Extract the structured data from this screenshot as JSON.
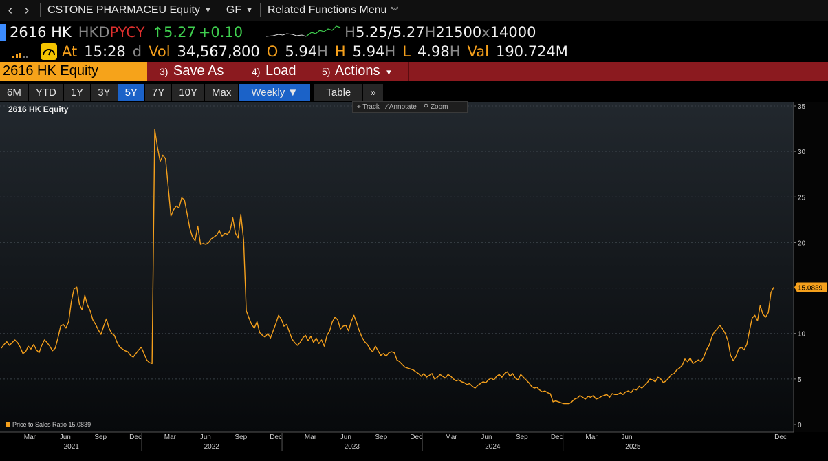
{
  "nav": {
    "security": "CSTONE PHARMACEU Equity",
    "function": "GF",
    "related": "Related Functions Menu"
  },
  "quote": {
    "ticker": "2616 HK",
    "currency": "HKD",
    "pricing": "PYCY",
    "arrow": "↑",
    "last": "5.27",
    "change": "+0.10",
    "bid_prefix": "H",
    "bid": "5.25",
    "ask": "/5.27",
    "size_prefix": "H",
    "bid_size": "21500",
    "x": "x",
    "ask_size": "14000",
    "at_label": "At",
    "time": "15:28",
    "d": "d",
    "vol_label": "Vol",
    "volume": "34,567,800",
    "open_label": "O",
    "open": "5.94",
    "h1": "H",
    "high_label": "H",
    "high": "5.94",
    "h2": "H",
    "low_label": "L",
    "low": "4.98",
    "h3": "H",
    "val_label": "Val",
    "value": "190.724M"
  },
  "command": {
    "main": "2616 HK Equity",
    "buttons": [
      {
        "num": "3)",
        "label": "Save As"
      },
      {
        "num": "4)",
        "label": "Load"
      },
      {
        "num": "5)",
        "label": "Actions",
        "caret": "▾"
      }
    ]
  },
  "tabs": [
    "6M",
    "YTD",
    "1Y",
    "3Y",
    "5Y",
    "7Y",
    "10Y",
    "Max"
  ],
  "active_tab": "5Y",
  "weekly": "Weekly ▼",
  "table": "Table",
  "more": "»",
  "toolbox": {
    "track": "Track",
    "annotate": "Annotate",
    "zoom": "Zoom"
  },
  "colors": {
    "line": "#f5a01c",
    "accent": "#1b62c8",
    "command_bar": "#8b1a1f"
  },
  "chart_data": {
    "type": "line",
    "title": "2616 HK Equity",
    "series": [
      {
        "name": "Price to Sales Ratio 15.0839",
        "x_start": "2020-12-31",
        "interval_days": 7,
        "values": [
          8.4,
          8.8,
          9.1,
          8.7,
          9.0,
          9.3,
          9.0,
          8.5,
          7.8,
          8.0,
          8.6,
          8.3,
          8.8,
          8.2,
          7.9,
          8.7,
          9.3,
          9.0,
          8.6,
          8.1,
          8.4,
          9.5,
          10.8,
          11.0,
          10.6,
          11.3,
          13.5,
          14.9,
          15.1,
          13.2,
          12.6,
          14.2,
          13.1,
          12.5,
          11.5,
          11.0,
          10.4,
          9.9,
          10.8,
          11.6,
          10.6,
          10.0,
          9.8,
          9.0,
          8.5,
          8.3,
          8.1,
          8.0,
          7.6,
          7.4,
          7.8,
          8.2,
          8.5,
          7.8,
          7.1,
          6.8,
          6.7,
          32.4,
          30.5,
          28.9,
          29.6,
          29.2,
          26.1,
          22.9,
          23.6,
          24.0,
          23.8,
          24.9,
          24.7,
          23.2,
          21.6,
          20.6,
          20.2,
          21.8,
          19.8,
          19.9,
          19.8,
          20.0,
          20.4,
          20.6,
          20.8,
          21.3,
          20.7,
          21.0,
          20.9,
          21.3,
          22.7,
          21.0,
          20.5,
          23.1,
          20.3,
          12.5,
          11.7,
          11.0,
          10.6,
          11.3,
          10.1,
          9.8,
          9.6,
          10.0,
          9.5,
          10.3,
          11.1,
          12.0,
          11.6,
          10.8,
          11.0,
          10.2,
          9.4,
          9.0,
          8.7,
          9.0,
          9.5,
          9.8,
          9.2,
          9.7,
          9.0,
          9.5,
          8.9,
          9.3,
          8.6,
          9.8,
          10.3,
          11.3,
          11.8,
          11.5,
          10.5,
          10.8,
          10.9,
          10.3,
          11.3,
          12.0,
          11.2,
          10.3,
          9.6,
          9.1,
          8.8,
          8.3,
          8.0,
          8.6,
          8.1,
          7.6,
          7.8,
          7.5,
          7.9,
          8.0,
          7.9,
          7.1,
          6.9,
          6.6,
          6.3,
          6.2,
          6.1,
          6.0,
          5.8,
          5.6,
          5.3,
          5.6,
          5.2,
          5.4,
          5.6,
          5.0,
          5.2,
          5.5,
          5.3,
          5.1,
          5.5,
          5.3,
          5.0,
          4.8,
          4.9,
          4.7,
          4.6,
          4.4,
          4.5,
          4.2,
          4.0,
          4.3,
          4.5,
          4.7,
          4.6,
          4.9,
          5.1,
          4.9,
          5.3,
          5.5,
          5.2,
          5.6,
          5.8,
          5.3,
          5.6,
          5.1,
          4.9,
          5.5,
          5.2,
          4.9,
          4.6,
          4.2,
          4.0,
          4.1,
          3.8,
          3.6,
          3.7,
          3.5,
          3.4,
          2.5,
          2.6,
          2.5,
          2.4,
          2.3,
          2.3,
          2.3,
          2.5,
          2.8,
          2.9,
          3.2,
          3.0,
          2.8,
          3.1,
          3.0,
          3.2,
          2.8,
          2.9,
          3.1,
          3.2,
          3.3,
          3.0,
          3.4,
          3.3,
          3.3,
          3.5,
          3.3,
          3.6,
          3.7,
          3.5,
          3.9,
          3.8,
          4.2,
          4.0,
          4.3,
          4.6,
          5.0,
          4.9,
          4.7,
          5.2,
          5.0,
          4.6,
          4.8,
          5.1,
          5.5,
          5.6,
          6.0,
          6.2,
          6.5,
          7.2,
          6.9,
          7.3,
          6.7,
          6.9,
          7.1,
          6.9,
          7.4,
          8.2,
          8.7,
          9.6,
          10.2,
          10.5,
          10.9,
          10.5,
          10.0,
          9.2,
          7.6,
          7.0,
          7.5,
          8.3,
          8.5,
          8.2,
          8.8,
          10.3,
          11.7,
          12.0,
          11.4,
          13.1,
          12.1,
          11.8,
          12.3,
          14.5,
          15.0839
        ]
      }
    ],
    "x_tick_labels": [
      "Mar",
      "Jun",
      "Sep",
      "Dec",
      "Mar",
      "Jun",
      "Sep",
      "Dec",
      "Mar",
      "Jun",
      "Sep",
      "Dec",
      "Mar",
      "Jun",
      "Sep",
      "Dec",
      "Mar",
      "Jun",
      "Dec"
    ],
    "year_labels": [
      "2021",
      "2022",
      "2023",
      "2024",
      "2025"
    ],
    "y_ticks": [
      0,
      5,
      10,
      15,
      20,
      25,
      30,
      35
    ],
    "ylim": [
      0,
      35
    ],
    "last_value_label": "15.0839",
    "grid": "horizontal dashed",
    "legend": "bottom-left"
  }
}
